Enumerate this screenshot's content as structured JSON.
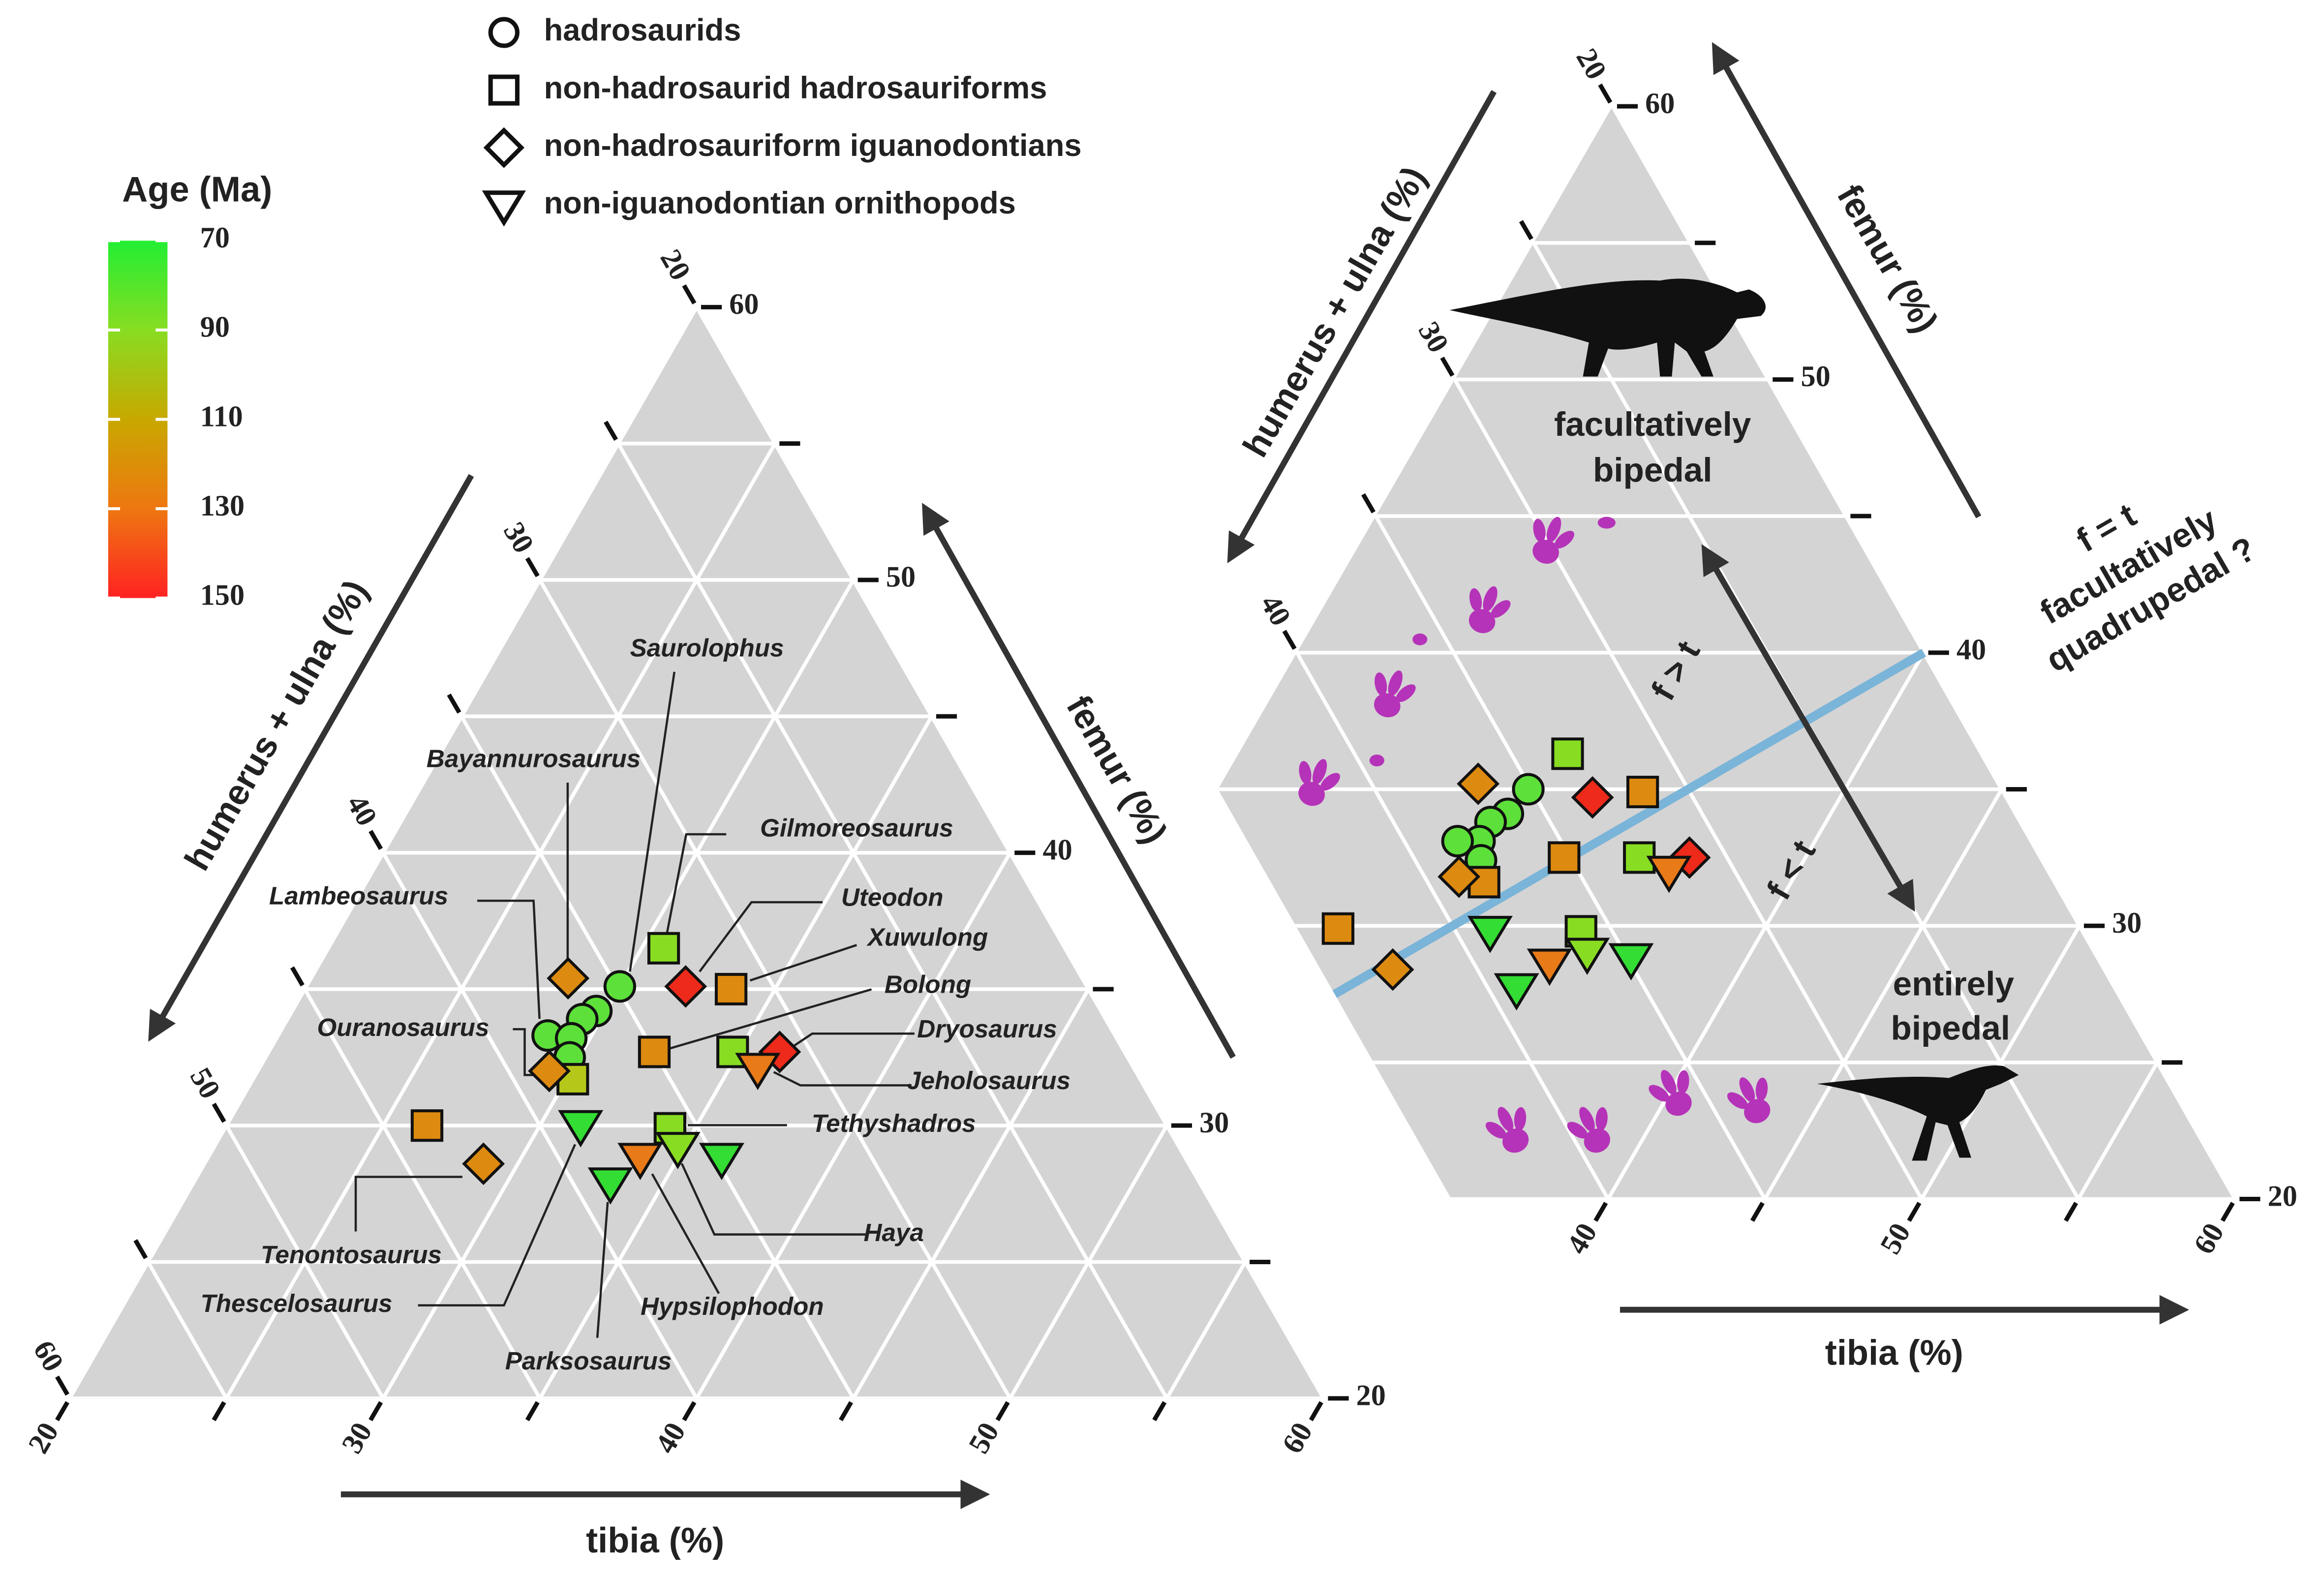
{
  "legend": {
    "entries": [
      {
        "name": "hadrosaurids",
        "marker": "circle"
      },
      {
        "name": "non-hadrosaurid hadrosauriforms",
        "marker": "square"
      },
      {
        "name": "non-hadrosauriform iguanodontians",
        "marker": "diamond"
      },
      {
        "name": "non-iguanodontian ornithopods",
        "marker": "triangle"
      }
    ]
  },
  "colorbar": {
    "title": "Age (Ma)",
    "lim": [
      70,
      150
    ],
    "ticks": [
      70,
      90,
      110,
      130,
      150
    ],
    "colors": [
      "#22ee33",
      "#88dd22",
      "#c8a800",
      "#ee7711",
      "#ff2222"
    ]
  },
  "chart_data": [
    {
      "type": "ternary",
      "grid": true,
      "axes": {
        "femur": {
          "label": "femur (%)",
          "lim": [
            20,
            60
          ],
          "ticks": [
            20,
            30,
            40,
            50,
            60
          ],
          "minor_ticks": [
            25,
            35,
            45,
            55
          ]
        },
        "tibia": {
          "label": "tibia (%)",
          "lim": [
            20,
            60
          ],
          "ticks": [
            20,
            30,
            40,
            50,
            60
          ],
          "minor_ticks": [
            25,
            35,
            45,
            55
          ]
        },
        "humerus_ulna": {
          "label": "humerus + ulna (%)",
          "lim": [
            20,
            60
          ],
          "ticks": [
            20,
            30,
            40,
            50,
            60
          ],
          "minor_ticks": [
            25,
            35,
            45,
            55
          ]
        }
      },
      "points": [
        {
          "name": "Saurolophus",
          "group": 0,
          "color": "#5de03a",
          "femur": 35.1,
          "tibia": 30.0,
          "humerus_ulna": 34.9
        },
        {
          "group": 0,
          "color": "#5de03a",
          "femur": 34.2,
          "tibia": 29.7,
          "humerus_ulna": 36.1
        },
        {
          "group": 0,
          "color": "#5de03a",
          "femur": 33.9,
          "tibia": 29.4,
          "humerus_ulna": 36.7
        },
        {
          "name": "Lambeosaurus",
          "group": 0,
          "color": "#5de03a",
          "femur": 33.3,
          "tibia": 28.6,
          "humerus_ulna": 38.1
        },
        {
          "group": 0,
          "color": "#5de03a",
          "femur": 33.2,
          "tibia": 29.4,
          "humerus_ulna": 37.4
        },
        {
          "group": 0,
          "color": "#5de03a",
          "femur": 32.5,
          "tibia": 29.7,
          "humerus_ulna": 37.8
        },
        {
          "name": "Gilmoreosaurus",
          "group": 1,
          "color": "#88dd22",
          "femur": 36.5,
          "tibia": 30.7,
          "humerus_ulna": 32.8
        },
        {
          "name": "Xuwulong",
          "group": 1,
          "color": "#dd8a10",
          "femur": 35.0,
          "tibia": 33.6,
          "humerus_ulna": 31.4
        },
        {
          "name": "Bolong",
          "group": 1,
          "color": "#dd8a10",
          "femur": 32.7,
          "tibia": 32.3,
          "humerus_ulna": 35.0
        },
        {
          "group": 1,
          "color": "#88dd22",
          "femur": 32.7,
          "tibia": 34.8,
          "humerus_ulna": 32.5
        },
        {
          "group": 1,
          "color": "#b5c81a",
          "femur": 31.7,
          "tibia": 30.2,
          "humerus_ulna": 38.1
        },
        {
          "group": 1,
          "color": "#dd8a10",
          "femur": 30.0,
          "tibia": 26.4,
          "humerus_ulna": 43.6
        },
        {
          "name": "Tethyshadros",
          "group": 1,
          "color": "#88dd22",
          "femur": 29.9,
          "tibia": 34.2,
          "humerus_ulna": 35.9
        },
        {
          "name": "Bayannurosaurus",
          "group": 2,
          "color": "#dd8a10",
          "femur": 35.4,
          "tibia": 28.2,
          "humerus_ulna": 36.4
        },
        {
          "name": "Ouranosaurus",
          "group": 2,
          "color": "#dd8a10",
          "femur": 32.0,
          "tibia": 29.3,
          "humerus_ulna": 38.7
        },
        {
          "name": "Uteodon",
          "group": 2,
          "color": "#ee2a1a",
          "femur": 35.1,
          "tibia": 32.1,
          "humerus_ulna": 32.8
        },
        {
          "name": "Dryosaurus",
          "group": 2,
          "color": "#ee2a1a",
          "femur": 32.7,
          "tibia": 36.3,
          "humerus_ulna": 31.0
        },
        {
          "name": "Tenontosaurus",
          "group": 2,
          "color": "#dd8a10",
          "femur": 28.6,
          "tibia": 28.9,
          "humerus_ulna": 42.5
        },
        {
          "name": "Thescelosaurus",
          "group": 3,
          "color": "#33dd33",
          "femur": 30.0,
          "tibia": 31.3,
          "humerus_ulna": 38.7
        },
        {
          "name": "Jeholosaurus",
          "group": 3,
          "color": "#e87a18",
          "femur": 32.1,
          "tibia": 35.9,
          "humerus_ulna": 32.0
        },
        {
          "name": "Parksosaurus",
          "group": 3,
          "color": "#33dd33",
          "femur": 27.9,
          "tibia": 33.3,
          "humerus_ulna": 38.8
        },
        {
          "name": "Hypsilophodon",
          "group": 3,
          "color": "#e87a18",
          "femur": 28.8,
          "tibia": 33.8,
          "humerus_ulna": 37.4
        },
        {
          "name": "Haya",
          "group": 3,
          "color": "#88dd22",
          "femur": 29.2,
          "tibia": 34.8,
          "humerus_ulna": 36.0
        },
        {
          "group": 3,
          "color": "#33dd33",
          "femur": 28.8,
          "tibia": 36.4,
          "humerus_ulna": 34.8
        }
      ]
    },
    {
      "type": "ternary",
      "grid": true,
      "axes": {
        "femur": {
          "label": "femur (%)",
          "lim": [
            20,
            60
          ],
          "ticks": [
            20,
            30,
            40,
            50,
            60
          ],
          "minor_ticks": [
            25,
            35,
            45,
            55
          ]
        },
        "tibia": {
          "label": "tibia (%)",
          "lim": [
            20,
            60
          ],
          "ticks": [
            40,
            50,
            60
          ],
          "minor_ticks": [
            45,
            55
          ]
        },
        "humerus_ulna": {
          "label": "humerus + ulna (%)",
          "lim": [
            20,
            45
          ],
          "ticks": [
            20,
            30,
            40
          ],
          "minor_ticks": [
            25,
            35
          ]
        }
      },
      "reference_line": {
        "label": "f = t",
        "color": "#7ab4d8"
      },
      "annotations": [
        "facultatively",
        "bipedal",
        "f > t",
        "f < t",
        "entirely",
        "bipedal",
        "facultatively",
        "quadrupedal ?"
      ],
      "points": [
        {
          "group": 0,
          "color": "#5de03a",
          "femur": 35.0,
          "tibia": 29.9,
          "humerus_ulna": 35.1
        },
        {
          "group": 0,
          "color": "#5de03a",
          "femur": 34.1,
          "tibia": 29.7,
          "humerus_ulna": 36.2
        },
        {
          "group": 0,
          "color": "#5de03a",
          "femur": 33.8,
          "tibia": 29.3,
          "humerus_ulna": 36.9
        },
        {
          "group": 0,
          "color": "#5de03a",
          "femur": 33.1,
          "tibia": 29.3,
          "humerus_ulna": 37.6
        },
        {
          "group": 0,
          "color": "#5de03a",
          "femur": 33.1,
          "tibia": 28.6,
          "humerus_ulna": 38.3
        },
        {
          "group": 0,
          "color": "#5de03a",
          "femur": 32.4,
          "tibia": 29.7,
          "humerus_ulna": 37.9
        },
        {
          "group": 1,
          "color": "#88dd22",
          "femur": 36.3,
          "tibia": 30.5,
          "humerus_ulna": 33.2
        },
        {
          "group": 1,
          "color": "#dd8a10",
          "femur": 34.9,
          "tibia": 33.6,
          "humerus_ulna": 31.5
        },
        {
          "group": 1,
          "color": "#dd8a10",
          "femur": 32.5,
          "tibia": 32.3,
          "humerus_ulna": 35.2
        },
        {
          "group": 1,
          "color": "#88dd22",
          "femur": 32.5,
          "tibia": 34.7,
          "humerus_ulna": 32.8
        },
        {
          "group": 1,
          "color": "#dd8a10",
          "femur": 31.6,
          "tibia": 30.2,
          "humerus_ulna": 38.2
        },
        {
          "group": 1,
          "color": "#dd8a10",
          "femur": 29.9,
          "tibia": 26.4,
          "humerus_ulna": 43.7
        },
        {
          "group": 1,
          "color": "#88dd22",
          "femur": 29.8,
          "tibia": 34.2,
          "humerus_ulna": 36.0
        },
        {
          "group": 2,
          "color": "#dd8a10",
          "femur": 35.2,
          "tibia": 28.2,
          "humerus_ulna": 36.6
        },
        {
          "group": 2,
          "color": "#ee2a1a",
          "femur": 34.7,
          "tibia": 32.1,
          "humerus_ulna": 33.2
        },
        {
          "group": 2,
          "color": "#ee2a1a",
          "femur": 32.5,
          "tibia": 36.3,
          "humerus_ulna": 31.2
        },
        {
          "group": 2,
          "color": "#dd8a10",
          "femur": 31.8,
          "tibia": 29.3,
          "humerus_ulna": 38.9
        },
        {
          "group": 2,
          "color": "#dd8a10",
          "femur": 28.4,
          "tibia": 28.9,
          "humerus_ulna": 42.7
        },
        {
          "group": 3,
          "color": "#33dd33",
          "femur": 29.8,
          "tibia": 31.3,
          "humerus_ulna": 38.9
        },
        {
          "group": 3,
          "color": "#e87a18",
          "femur": 32.0,
          "tibia": 35.9,
          "humerus_ulna": 32.1
        },
        {
          "group": 3,
          "color": "#33dd33",
          "femur": 27.7,
          "tibia": 33.2,
          "humerus_ulna": 39.1
        },
        {
          "group": 3,
          "color": "#e87a18",
          "femur": 28.6,
          "tibia": 33.8,
          "humerus_ulna": 37.6
        },
        {
          "group": 3,
          "color": "#88dd22",
          "femur": 29.0,
          "tibia": 34.8,
          "humerus_ulna": 36.2
        },
        {
          "group": 3,
          "color": "#33dd33",
          "femur": 28.8,
          "tibia": 36.3,
          "humerus_ulna": 34.9
        }
      ]
    }
  ]
}
